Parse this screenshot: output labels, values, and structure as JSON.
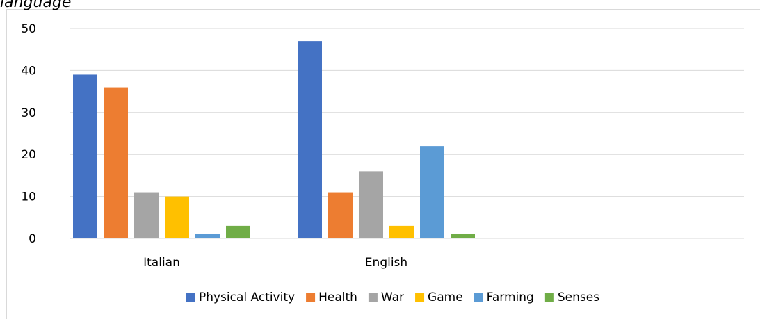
{
  "caption_fragment": "language",
  "chart_data": {
    "type": "bar",
    "categories": [
      "Italian",
      "English"
    ],
    "series": [
      {
        "name": "Physical Activity",
        "color": "#4472c4",
        "values": [
          39,
          47
        ]
      },
      {
        "name": "Health",
        "color": "#ed7d31",
        "values": [
          36,
          11
        ]
      },
      {
        "name": "War",
        "color": "#a5a5a5",
        "values": [
          11,
          16
        ]
      },
      {
        "name": "Game",
        "color": "#ffc000",
        "values": [
          10,
          3
        ]
      },
      {
        "name": "Farming",
        "color": "#5b9bd5",
        "values": [
          1,
          22
        ]
      },
      {
        "name": "Senses",
        "color": "#70ad47",
        "values": [
          3,
          1
        ]
      }
    ],
    "ylim": [
      0,
      50
    ],
    "yticks": [
      0,
      10,
      20,
      30,
      40,
      50
    ],
    "grid": true,
    "legend": "bottom",
    "gridline_color": "#d9d9d9"
  }
}
